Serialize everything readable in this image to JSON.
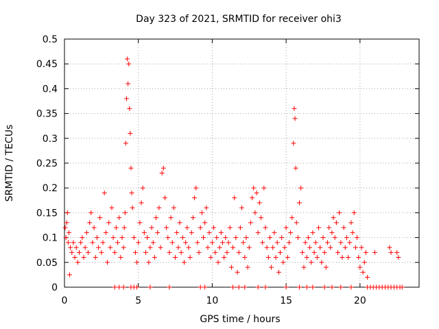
{
  "chart_data": {
    "type": "scatter",
    "title": "Day 323 of 2021, SRMTID for receiver ohi3",
    "xlabel": "GPS time / hours",
    "ylabel": "SRMTID / TECUs",
    "xlim": [
      0,
      24
    ],
    "ylim": [
      0,
      0.5
    ],
    "xticks": [
      0,
      5,
      10,
      15,
      20
    ],
    "yticks": [
      0,
      0.05,
      0.1,
      0.15,
      0.2,
      0.25,
      0.3,
      0.35,
      0.4,
      0.45,
      0.5
    ],
    "ytick_labels": [
      "0",
      "0.05",
      "0.1",
      "0.15",
      "0.2",
      "0.25",
      "0.3",
      "0.35",
      "0.4",
      "0.45",
      "0.5"
    ],
    "grid": true,
    "marker": "+",
    "series": [
      {
        "name": "SRMTID",
        "color": "#ff0000",
        "points": [
          [
            0.05,
            0.12
          ],
          [
            0.1,
            0.1
          ],
          [
            0.15,
            0.13
          ],
          [
            0.2,
            0.15
          ],
          [
            0.25,
            0.09
          ],
          [
            0.3,
            0.11
          ],
          [
            0.35,
            0.025
          ],
          [
            0.4,
            0.08
          ],
          [
            0.5,
            0.07
          ],
          [
            0.6,
            0.09
          ],
          [
            0.7,
            0.06
          ],
          [
            0.8,
            0.08
          ],
          [
            0.9,
            0.05
          ],
          [
            1.0,
            0.07
          ],
          [
            1.1,
            0.09
          ],
          [
            1.2,
            0.1
          ],
          [
            1.3,
            0.06
          ],
          [
            1.4,
            0.08
          ],
          [
            1.5,
            0.11
          ],
          [
            1.6,
            0.07
          ],
          [
            1.7,
            0.13
          ],
          [
            1.8,
            0.15
          ],
          [
            1.9,
            0.09
          ],
          [
            2.0,
            0.12
          ],
          [
            2.1,
            0.06
          ],
          [
            2.2,
            0.1
          ],
          [
            2.3,
            0.08
          ],
          [
            2.4,
            0.14
          ],
          [
            2.5,
            0.07
          ],
          [
            2.6,
            0.09
          ],
          [
            2.7,
            0.19
          ],
          [
            2.8,
            0.11
          ],
          [
            2.9,
            0.05
          ],
          [
            3.0,
            0.13
          ],
          [
            3.1,
            0.08
          ],
          [
            3.2,
            0.16
          ],
          [
            3.3,
            0.1
          ],
          [
            3.4,
            0.07
          ],
          [
            3.5,
            0.12
          ],
          [
            3.6,
            0.09
          ],
          [
            3.7,
            0.14
          ],
          [
            3.8,
            0.06
          ],
          [
            3.9,
            0.1
          ],
          [
            4.0,
            0.08
          ],
          [
            4.05,
            0.12
          ],
          [
            4.1,
            0.15
          ],
          [
            4.15,
            0.29
          ],
          [
            4.2,
            0.38
          ],
          [
            4.25,
            0.46
          ],
          [
            4.3,
            0.41
          ],
          [
            4.35,
            0.45
          ],
          [
            4.4,
            0.36
          ],
          [
            4.45,
            0.31
          ],
          [
            4.5,
            0.24
          ],
          [
            4.55,
            0.19
          ],
          [
            4.6,
            0.16
          ],
          [
            4.7,
            0.1
          ],
          [
            4.8,
            0.07
          ],
          [
            4.9,
            0.05
          ],
          [
            5.0,
            0.09
          ],
          [
            5.1,
            0.13
          ],
          [
            5.2,
            0.17
          ],
          [
            5.3,
            0.2
          ],
          [
            5.4,
            0.11
          ],
          [
            5.5,
            0.07
          ],
          [
            5.6,
            0.1
          ],
          [
            5.7,
            0.05
          ],
          [
            5.8,
            0.08
          ],
          [
            5.9,
            0.12
          ],
          [
            6.0,
            0.09
          ],
          [
            6.1,
            0.06
          ],
          [
            6.2,
            0.14
          ],
          [
            6.3,
            0.11
          ],
          [
            6.4,
            0.16
          ],
          [
            6.5,
            0.08
          ],
          [
            6.6,
            0.23
          ],
          [
            6.7,
            0.24
          ],
          [
            6.8,
            0.18
          ],
          [
            6.9,
            0.12
          ],
          [
            7.0,
            0.1
          ],
          [
            7.1,
            0.07
          ],
          [
            7.2,
            0.14
          ],
          [
            7.3,
            0.09
          ],
          [
            7.4,
            0.16
          ],
          [
            7.5,
            0.06
          ],
          [
            7.6,
            0.11
          ],
          [
            7.7,
            0.08
          ],
          [
            7.8,
            0.13
          ],
          [
            7.9,
            0.07
          ],
          [
            8.0,
            0.1
          ],
          [
            8.1,
            0.05
          ],
          [
            8.2,
            0.09
          ],
          [
            8.3,
            0.12
          ],
          [
            8.4,
            0.08
          ],
          [
            8.5,
            0.06
          ],
          [
            8.6,
            0.11
          ],
          [
            8.7,
            0.14
          ],
          [
            8.8,
            0.18
          ],
          [
            8.9,
            0.2
          ],
          [
            9.0,
            0.09
          ],
          [
            9.1,
            0.07
          ],
          [
            9.2,
            0.12
          ],
          [
            9.3,
            0.15
          ],
          [
            9.4,
            0.1
          ],
          [
            9.5,
            0.13
          ],
          [
            9.6,
            0.16
          ],
          [
            9.7,
            0.08
          ],
          [
            9.8,
            0.11
          ],
          [
            9.9,
            0.06
          ],
          [
            10.0,
            0.09
          ],
          [
            10.1,
            0.12
          ],
          [
            10.2,
            0.07
          ],
          [
            10.3,
            0.1
          ],
          [
            10.4,
            0.05
          ],
          [
            10.5,
            0.08
          ],
          [
            10.6,
            0.11
          ],
          [
            10.7,
            0.09
          ],
          [
            10.8,
            0.06
          ],
          [
            10.9,
            0.1
          ],
          [
            11.0,
            0.07
          ],
          [
            11.1,
            0.09
          ],
          [
            11.2,
            0.12
          ],
          [
            11.3,
            0.04
          ],
          [
            11.4,
            0.08
          ],
          [
            11.5,
            0.18
          ],
          [
            11.6,
            0.1
          ],
          [
            11.7,
            0.03
          ],
          [
            11.8,
            0.07
          ],
          [
            11.9,
            0.12
          ],
          [
            12.0,
            0.16
          ],
          [
            12.1,
            0.09
          ],
          [
            12.2,
            0.06
          ],
          [
            12.3,
            0.1
          ],
          [
            12.4,
            0.04
          ],
          [
            12.5,
            0.08
          ],
          [
            12.6,
            0.13
          ],
          [
            12.7,
            0.18
          ],
          [
            12.8,
            0.2
          ],
          [
            12.9,
            0.15
          ],
          [
            13.0,
            0.19
          ],
          [
            13.1,
            0.11
          ],
          [
            13.2,
            0.17
          ],
          [
            13.3,
            0.14
          ],
          [
            13.4,
            0.09
          ],
          [
            13.5,
            0.2
          ],
          [
            13.6,
            0.12
          ],
          [
            13.7,
            0.08
          ],
          [
            13.8,
            0.06
          ],
          [
            13.9,
            0.1
          ],
          [
            14.0,
            0.04
          ],
          [
            14.1,
            0.08
          ],
          [
            14.2,
            0.11
          ],
          [
            14.3,
            0.06
          ],
          [
            14.4,
            0.09
          ],
          [
            14.5,
            0.03
          ],
          [
            14.6,
            0.07
          ],
          [
            14.7,
            0.1
          ],
          [
            14.8,
            0.05
          ],
          [
            14.9,
            0.08
          ],
          [
            15.0,
            0.12
          ],
          [
            15.1,
            0.06
          ],
          [
            15.2,
            0.09
          ],
          [
            15.3,
            0.11
          ],
          [
            15.4,
            0.14
          ],
          [
            15.5,
            0.29
          ],
          [
            15.55,
            0.36
          ],
          [
            15.6,
            0.34
          ],
          [
            15.65,
            0.24
          ],
          [
            15.7,
            0.13
          ],
          [
            15.8,
            0.1
          ],
          [
            15.9,
            0.17
          ],
          [
            16.0,
            0.2
          ],
          [
            16.1,
            0.07
          ],
          [
            16.2,
            0.04
          ],
          [
            16.3,
            0.09
          ],
          [
            16.4,
            0.06
          ],
          [
            16.5,
            0.1
          ],
          [
            16.6,
            0.08
          ],
          [
            16.7,
            0.05
          ],
          [
            16.8,
            0.11
          ],
          [
            16.9,
            0.07
          ],
          [
            17.0,
            0.09
          ],
          [
            17.1,
            0.06
          ],
          [
            17.2,
            0.12
          ],
          [
            17.3,
            0.08
          ],
          [
            17.4,
            0.05
          ],
          [
            17.5,
            0.1
          ],
          [
            17.6,
            0.07
          ],
          [
            17.7,
            0.04
          ],
          [
            17.8,
            0.09
          ],
          [
            17.9,
            0.12
          ],
          [
            18.0,
            0.08
          ],
          [
            18.1,
            0.11
          ],
          [
            18.2,
            0.14
          ],
          [
            18.3,
            0.1
          ],
          [
            18.4,
            0.13
          ],
          [
            18.5,
            0.07
          ],
          [
            18.6,
            0.15
          ],
          [
            18.7,
            0.09
          ],
          [
            18.8,
            0.06
          ],
          [
            18.9,
            0.12
          ],
          [
            19.0,
            0.08
          ],
          [
            19.1,
            0.1
          ],
          [
            19.2,
            0.06
          ],
          [
            19.3,
            0.09
          ],
          [
            19.4,
            0.13
          ],
          [
            19.5,
            0.11
          ],
          [
            19.6,
            0.15
          ],
          [
            19.7,
            0.08
          ],
          [
            19.8,
            0.1
          ],
          [
            19.9,
            0.06
          ],
          [
            20.0,
            0.04
          ],
          [
            20.1,
            0.08
          ],
          [
            20.2,
            0.03
          ],
          [
            20.3,
            0.05
          ],
          [
            20.4,
            0.07
          ],
          [
            20.5,
            0.02
          ],
          [
            21.0,
            0.07
          ],
          [
            22.0,
            0.08
          ],
          [
            22.1,
            0.07
          ],
          [
            22.5,
            0.07
          ],
          [
            22.6,
            0.06
          ],
          [
            3.4,
            0.0
          ],
          [
            3.7,
            0.0
          ],
          [
            4.0,
            0.0
          ],
          [
            4.5,
            0.0
          ],
          [
            4.7,
            0.0
          ],
          [
            4.9,
            0.0
          ],
          [
            5.8,
            0.0
          ],
          [
            7.1,
            0.0
          ],
          [
            9.2,
            0.0
          ],
          [
            9.5,
            0.0
          ],
          [
            11.4,
            0.0
          ],
          [
            11.8,
            0.0
          ],
          [
            12.2,
            0.0
          ],
          [
            13.1,
            0.0
          ],
          [
            13.6,
            0.0
          ],
          [
            15.0,
            0.0
          ],
          [
            15.9,
            0.0
          ],
          [
            16.4,
            0.0
          ],
          [
            16.8,
            0.0
          ],
          [
            17.6,
            0.0
          ],
          [
            18.1,
            0.0
          ],
          [
            18.7,
            0.0
          ],
          [
            19.4,
            0.0
          ],
          [
            20.5,
            0.0
          ],
          [
            20.7,
            0.0
          ],
          [
            20.9,
            0.0
          ],
          [
            21.1,
            0.0
          ],
          [
            21.3,
            0.0
          ],
          [
            21.5,
            0.0
          ],
          [
            21.7,
            0.0
          ],
          [
            21.9,
            0.0
          ],
          [
            22.1,
            0.0
          ],
          [
            22.3,
            0.0
          ],
          [
            22.5,
            0.0
          ],
          [
            22.7,
            0.0
          ],
          [
            22.85,
            0.0
          ]
        ]
      }
    ]
  }
}
